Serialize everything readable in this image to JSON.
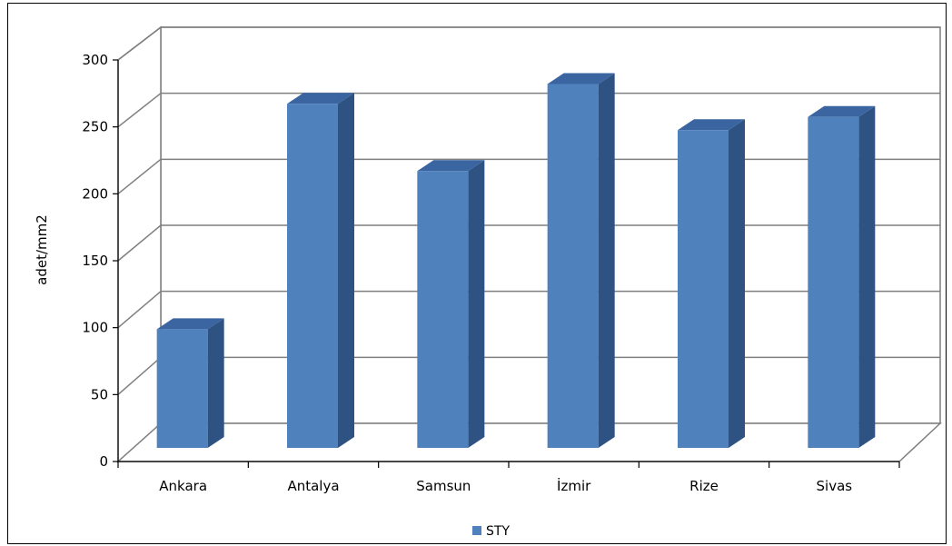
{
  "chart_data": {
    "type": "bar",
    "style": "3d-column",
    "title": "",
    "xlabel": "",
    "ylabel": "adet/mm2",
    "categories": [
      "Ankara",
      "Antalya",
      "Samsun",
      "İzmir",
      "Rize",
      "Sivas"
    ],
    "series": [
      {
        "name": "STY",
        "values": [
          90,
          261,
          210,
          276,
          241,
          251
        ]
      }
    ],
    "ylim": [
      0,
      300
    ],
    "yticks": [
      "0",
      "50",
      "100",
      "150",
      "200",
      "250",
      "300"
    ],
    "grid": true,
    "legend": "bottom",
    "colors": {
      "front": "#4F81BD",
      "side": "#2E5383",
      "top": "#3B65A0",
      "wall_line": "#7f7f7f"
    }
  }
}
